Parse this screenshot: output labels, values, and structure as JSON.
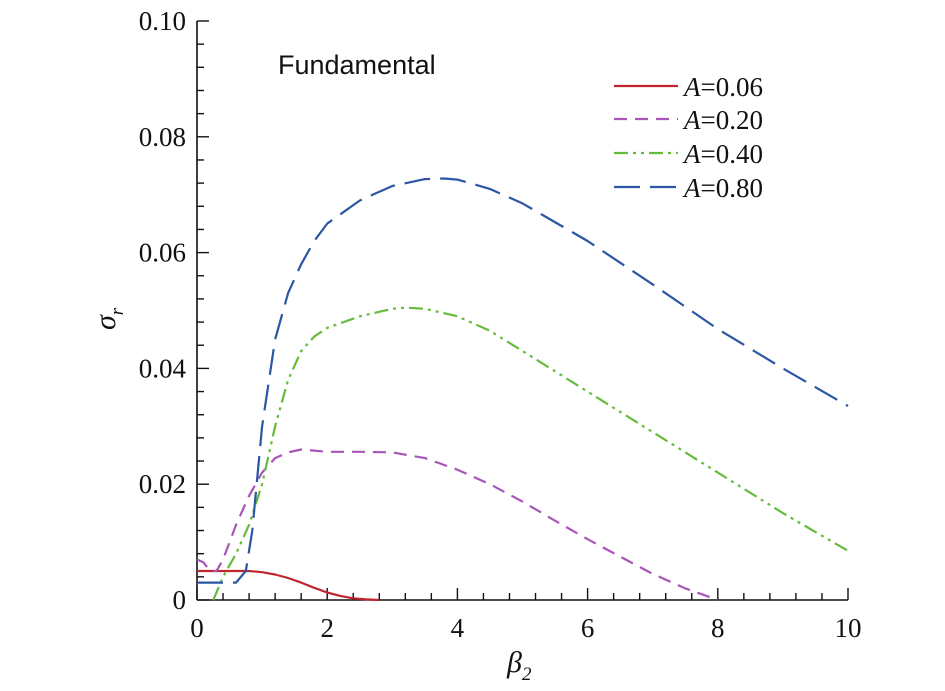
{
  "chart_data": {
    "type": "line",
    "annotation": "Fundamental",
    "xlabel": {
      "main": "β",
      "sub": "2"
    },
    "ylabel": {
      "main": "σ",
      "sub": "r"
    },
    "xlim": [
      0,
      10
    ],
    "ylim": [
      0,
      0.1
    ],
    "x_ticks": [
      0,
      2,
      4,
      6,
      8,
      10
    ],
    "x_tick_labels": [
      "0",
      "2",
      "4",
      "6",
      "8",
      "10"
    ],
    "y_ticks": [
      0,
      0.02,
      0.04,
      0.06,
      0.08,
      0.1
    ],
    "y_tick_labels": [
      "0",
      "0.02",
      "0.04",
      "0.06",
      "0.08",
      "0.10"
    ],
    "grid": false,
    "legend_position": "top-right",
    "series": [
      {
        "var": "A",
        "value": "=0.06",
        "name": "A=0.06",
        "color": "#c0262d",
        "dash": "solid",
        "x": [
          0,
          0.3,
          0.6,
          0.8,
          1.0,
          1.2,
          1.4,
          1.6,
          1.8,
          2.0,
          2.2,
          2.4,
          2.6,
          2.8
        ],
        "y": [
          0.005,
          0.005,
          0.005,
          0.005,
          0.0048,
          0.0044,
          0.0038,
          0.003,
          0.0021,
          0.0013,
          0.0007,
          0.0003,
          0.0001,
          0.0
        ]
      },
      {
        "var": "A",
        "value": "=0.20",
        "name": "A=0.20",
        "color": "#a855b8",
        "dash": "dashed",
        "x": [
          0,
          0.1,
          0.2,
          0.3,
          0.4,
          0.5,
          0.6,
          0.8,
          1.0,
          1.2,
          1.4,
          1.6,
          1.8,
          2.0,
          2.5,
          3.0,
          3.5,
          4.0,
          4.5,
          5.0,
          5.5,
          6.0,
          6.5,
          7.0,
          7.5,
          8.0
        ],
        "y": [
          0.007,
          0.0065,
          0.005,
          0.005,
          0.007,
          0.01,
          0.013,
          0.018,
          0.022,
          0.0245,
          0.0255,
          0.026,
          0.0258,
          0.0256,
          0.0256,
          0.0255,
          0.0245,
          0.0225,
          0.02,
          0.017,
          0.0137,
          0.0105,
          0.0075,
          0.0045,
          0.002,
          0.0
        ]
      },
      {
        "var": "A",
        "value": "=0.40",
        "name": "A=0.40",
        "color": "#66bb3e",
        "dash": "dashdotdot",
        "x": [
          0.25,
          0.4,
          0.6,
          0.8,
          1.0,
          1.2,
          1.4,
          1.6,
          1.8,
          2.0,
          2.5,
          3.0,
          3.2,
          3.5,
          4.0,
          4.5,
          5.0,
          6.0,
          7.0,
          8.0,
          9.0,
          10.0
        ],
        "y": [
          0.0,
          0.004,
          0.008,
          0.013,
          0.02,
          0.03,
          0.038,
          0.043,
          0.0455,
          0.047,
          0.049,
          0.0503,
          0.0505,
          0.0503,
          0.049,
          0.0465,
          0.043,
          0.036,
          0.029,
          0.022,
          0.015,
          0.0085
        ]
      },
      {
        "var": "A",
        "value": "=0.80",
        "name": "A=0.80",
        "color": "#2b56a3",
        "dash": "longdash",
        "x": [
          0,
          0.6,
          0.75,
          0.85,
          1.0,
          1.2,
          1.4,
          1.6,
          1.8,
          2.0,
          2.5,
          3.0,
          3.5,
          3.8,
          4.0,
          4.5,
          5.0,
          6.0,
          7.0,
          8.0,
          9.0,
          10.0
        ],
        "y": [
          0.003,
          0.003,
          0.005,
          0.012,
          0.03,
          0.045,
          0.053,
          0.058,
          0.062,
          0.065,
          0.069,
          0.0715,
          0.0727,
          0.0728,
          0.0726,
          0.071,
          0.0685,
          0.062,
          0.0545,
          0.0468,
          0.04,
          0.0335
        ]
      }
    ]
  }
}
